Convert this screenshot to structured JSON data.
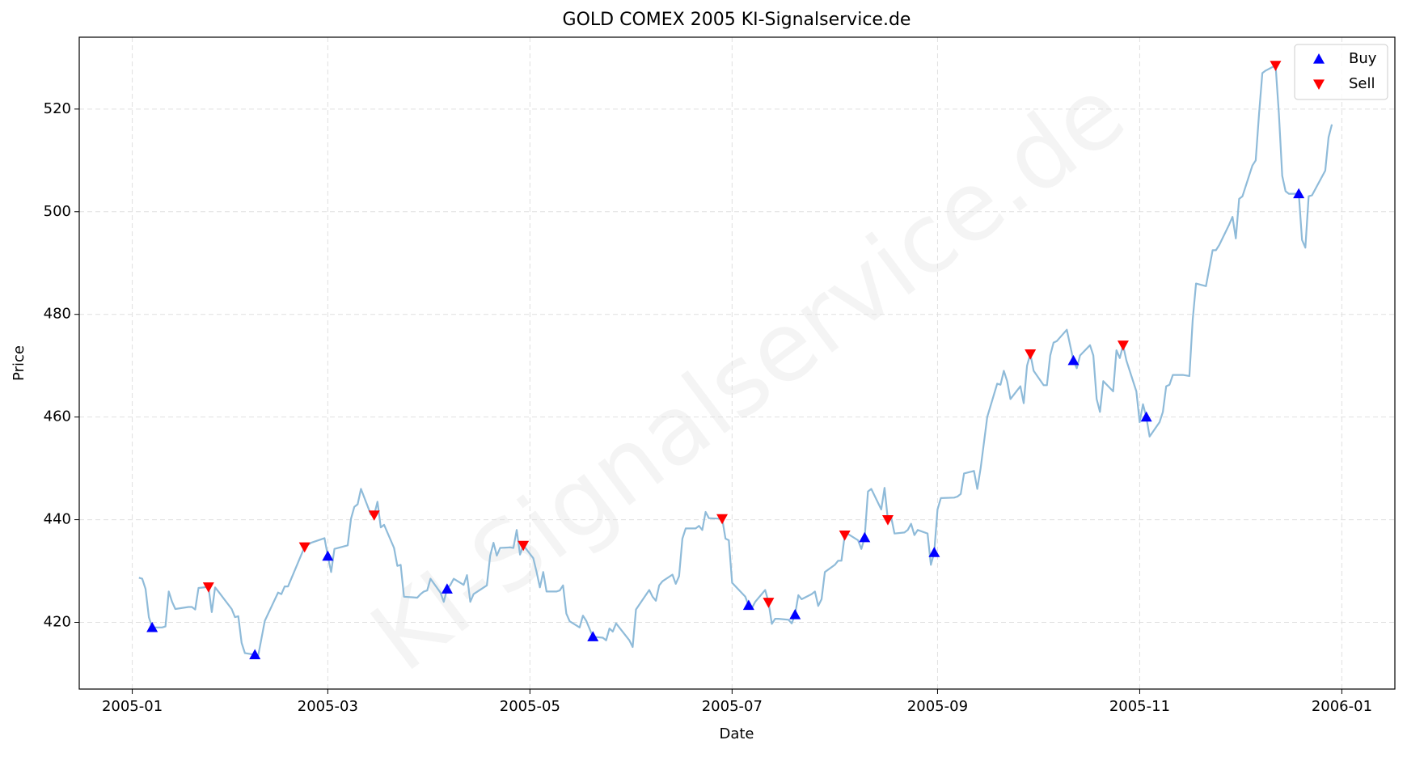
{
  "chart_data": {
    "type": "line",
    "title": "GOLD COMEX 2005 KI-Signalservice.de",
    "watermark": "KI-Signalservice.de",
    "x_label": "Date",
    "y_label": "Price",
    "color": "#8fbbd9",
    "x": [
      "2005-01-03",
      "2005-01-04",
      "2005-01-05",
      "2005-01-06",
      "2005-01-07",
      "2005-01-10",
      "2005-01-11",
      "2005-01-12",
      "2005-01-13",
      "2005-01-14",
      "2005-01-18",
      "2005-01-19",
      "2005-01-20",
      "2005-01-21",
      "2005-01-24",
      "2005-01-25",
      "2005-01-26",
      "2005-01-27",
      "2005-01-31",
      "2005-02-01",
      "2005-02-02",
      "2005-02-03",
      "2005-02-04",
      "2005-02-07",
      "2005-02-08",
      "2005-02-10",
      "2005-02-14",
      "2005-02-15",
      "2005-02-16",
      "2005-02-17",
      "2005-02-22",
      "2005-02-24",
      "2005-02-28",
      "2005-03-01",
      "2005-03-02",
      "2005-03-03",
      "2005-03-07",
      "2005-03-08",
      "2005-03-09",
      "2005-03-10",
      "2005-03-11",
      "2005-03-14",
      "2005-03-15",
      "2005-03-16",
      "2005-03-17",
      "2005-03-18",
      "2005-03-21",
      "2005-03-22",
      "2005-03-23",
      "2005-03-24",
      "2005-03-28",
      "2005-03-29",
      "2005-03-30",
      "2005-03-31",
      "2005-04-01",
      "2005-04-04",
      "2005-04-05",
      "2005-04-06",
      "2005-04-07",
      "2005-04-08",
      "2005-04-11",
      "2005-04-12",
      "2005-04-13",
      "2005-04-14",
      "2005-04-18",
      "2005-04-19",
      "2005-04-20",
      "2005-04-21",
      "2005-04-22",
      "2005-04-25",
      "2005-04-26",
      "2005-04-27",
      "2005-04-28",
      "2005-04-29",
      "2005-05-02",
      "2005-05-03",
      "2005-05-04",
      "2005-05-05",
      "2005-05-06",
      "2005-05-09",
      "2005-05-10",
      "2005-05-11",
      "2005-05-12",
      "2005-05-13",
      "2005-05-16",
      "2005-05-17",
      "2005-05-18",
      "2005-05-20",
      "2005-05-23",
      "2005-05-24",
      "2005-05-25",
      "2005-05-26",
      "2005-05-27",
      "2005-05-31",
      "2005-06-01",
      "2005-06-02",
      "2005-06-06",
      "2005-06-07",
      "2005-06-08",
      "2005-06-09",
      "2005-06-10",
      "2005-06-13",
      "2005-06-14",
      "2005-06-15",
      "2005-06-16",
      "2005-06-17",
      "2005-06-20",
      "2005-06-21",
      "2005-06-22",
      "2005-06-23",
      "2005-06-24",
      "2005-06-27",
      "2005-06-28",
      "2005-06-29",
      "2005-06-30",
      "2005-07-01",
      "2005-07-05",
      "2005-07-06",
      "2005-07-07",
      "2005-07-08",
      "2005-07-11",
      "2005-07-12",
      "2005-07-13",
      "2005-07-14",
      "2005-07-15",
      "2005-07-18",
      "2005-07-19",
      "2005-07-20",
      "2005-07-21",
      "2005-07-22",
      "2005-07-25",
      "2005-07-26",
      "2005-07-27",
      "2005-07-28",
      "2005-07-29",
      "2005-08-01",
      "2005-08-02",
      "2005-08-03",
      "2005-08-04",
      "2005-08-05",
      "2005-08-08",
      "2005-08-09",
      "2005-08-10",
      "2005-08-11",
      "2005-08-12",
      "2005-08-15",
      "2005-08-16",
      "2005-08-17",
      "2005-08-18",
      "2005-08-19",
      "2005-08-22",
      "2005-08-23",
      "2005-08-24",
      "2005-08-25",
      "2005-08-26",
      "2005-08-29",
      "2005-08-30",
      "2005-08-31",
      "2005-09-01",
      "2005-09-02",
      "2005-09-06",
      "2005-09-07",
      "2005-09-08",
      "2005-09-09",
      "2005-09-12",
      "2005-09-13",
      "2005-09-14",
      "2005-09-15",
      "2005-09-16",
      "2005-09-19",
      "2005-09-20",
      "2005-09-21",
      "2005-09-22",
      "2005-09-23",
      "2005-09-26",
      "2005-09-27",
      "2005-09-28",
      "2005-09-29",
      "2005-09-30",
      "2005-10-03",
      "2005-10-04",
      "2005-10-05",
      "2005-10-06",
      "2005-10-07",
      "2005-10-10",
      "2005-10-11",
      "2005-10-12",
      "2005-10-13",
      "2005-10-14",
      "2005-10-17",
      "2005-10-18",
      "2005-10-19",
      "2005-10-20",
      "2005-10-21",
      "2005-10-24",
      "2005-10-25",
      "2005-10-26",
      "2005-10-27",
      "2005-10-28",
      "2005-10-31",
      "2005-11-01",
      "2005-11-02",
      "2005-11-03",
      "2005-11-04",
      "2005-11-07",
      "2005-11-08",
      "2005-11-09",
      "2005-11-10",
      "2005-11-11",
      "2005-11-14",
      "2005-11-16",
      "2005-11-17",
      "2005-11-18",
      "2005-11-21",
      "2005-11-22",
      "2005-11-23",
      "2005-11-24",
      "2005-11-25",
      "2005-11-28",
      "2005-11-29",
      "2005-11-30",
      "2005-12-01",
      "2005-12-02",
      "2005-12-05",
      "2005-12-06",
      "2005-12-07",
      "2005-12-08",
      "2005-12-09",
      "2005-12-12",
      "2005-12-13",
      "2005-12-14",
      "2005-12-15",
      "2005-12-16",
      "2005-12-19",
      "2005-12-20",
      "2005-12-21",
      "2005-12-22",
      "2005-12-23",
      "2005-12-27",
      "2005-12-28",
      "2005-12-29"
    ],
    "values": [
      428.7,
      428.5,
      426.5,
      421.0,
      419.0,
      419.0,
      419.2,
      426.0,
      424.0,
      422.6,
      423.0,
      423.0,
      422.5,
      426.7,
      426.9,
      422.0,
      426.8,
      426.0,
      422.6,
      421.0,
      421.2,
      416.0,
      414.0,
      413.7,
      413.5,
      420.3,
      425.8,
      425.5,
      427.0,
      427.0,
      434.7,
      435.5,
      436.4,
      432.9,
      429.8,
      434.3,
      435.0,
      440.2,
      442.5,
      443.0,
      446.0,
      441.0,
      440.9,
      443.5,
      438.5,
      439.0,
      434.5,
      431.0,
      431.2,
      425.0,
      424.8,
      425.5,
      426.0,
      426.2,
      428.5,
      425.8,
      424.0,
      426.5,
      427.3,
      428.5,
      427.3,
      429.2,
      424.0,
      425.5,
      427.2,
      433.0,
      435.5,
      433.0,
      434.5,
      434.6,
      434.5,
      438.0,
      433.2,
      435.0,
      432.5,
      429.8,
      426.8,
      429.8,
      426.0,
      426.0,
      426.2,
      427.2,
      421.7,
      420.2,
      419.0,
      421.3,
      420.3,
      417.2,
      417.0,
      416.5,
      418.8,
      418.2,
      419.8,
      416.5,
      415.2,
      422.5,
      426.3,
      425.0,
      424.2,
      427.2,
      428.0,
      429.3,
      427.5,
      429.0,
      436.3,
      438.3,
      438.3,
      438.8,
      438.0,
      441.5,
      440.3,
      440.2,
      440.2,
      436.3,
      436.0,
      427.7,
      425.0,
      423.3,
      422.8,
      424.0,
      426.3,
      423.9,
      419.7,
      420.7,
      420.7,
      420.5,
      419.8,
      421.5,
      425.3,
      424.5,
      425.5,
      426.0,
      423.2,
      424.5,
      429.8,
      431.2,
      432.0,
      432.0,
      437.0,
      437.2,
      436.0,
      434.3,
      436.5,
      445.5,
      446.0,
      442.0,
      446.2,
      440.0,
      440.5,
      437.3,
      437.5,
      438.0,
      439.2,
      437.0,
      438.0,
      437.3,
      431.2,
      433.6,
      442.0,
      444.2,
      444.3,
      444.5,
      445.0,
      449.0,
      449.5,
      446.0,
      450.0,
      455.0,
      460.0,
      466.5,
      466.3,
      469.0,
      467.0,
      463.5,
      466.0,
      462.7,
      470.0,
      472.3,
      469.0,
      466.2,
      466.2,
      472.0,
      474.5,
      474.8,
      477.0,
      474.0,
      471.0,
      469.5,
      472.0,
      474.0,
      472.0,
      463.5,
      461.0,
      467.0,
      465.0,
      473.0,
      471.5,
      474.0,
      471.0,
      465.0,
      459.0,
      462.5,
      460.0,
      456.2,
      459.0,
      461.0,
      466.0,
      466.3,
      468.2,
      468.2,
      468.0,
      479.0,
      486.0,
      485.5,
      489.0,
      492.5,
      492.5,
      493.5,
      497.5,
      499.0,
      494.8,
      502.5,
      503.0,
      509.0,
      510.0,
      519.0,
      527.0,
      527.5,
      528.5,
      519.0,
      507.0,
      504.0,
      503.5,
      503.5,
      494.5,
      493.0,
      503.0,
      503.2,
      508.0,
      514.5,
      517.0
    ],
    "signals": [
      {
        "name": "Buy",
        "marker": "triangle-up",
        "color": "#0000ff",
        "x": [
          "2005-01-07",
          "2005-02-07",
          "2005-03-01",
          "2005-04-06",
          "2005-05-20",
          "2005-07-06",
          "2005-07-20",
          "2005-08-10",
          "2005-08-31",
          "2005-10-12",
          "2005-11-03",
          "2005-12-19"
        ],
        "values": [
          419.0,
          413.7,
          432.9,
          426.5,
          417.2,
          423.3,
          421.5,
          436.5,
          433.6,
          471.0,
          460.0,
          503.5
        ]
      },
      {
        "name": "Sell",
        "marker": "triangle-down",
        "color": "#ff0000",
        "x": [
          "2005-01-24",
          "2005-02-22",
          "2005-03-15",
          "2005-04-29",
          "2005-06-28",
          "2005-07-12",
          "2005-08-04",
          "2005-08-17",
          "2005-09-29",
          "2005-10-27",
          "2005-12-12"
        ],
        "values": [
          426.9,
          434.7,
          440.9,
          435.0,
          440.2,
          423.9,
          437.0,
          440.0,
          472.3,
          474.0,
          528.5
        ]
      }
    ],
    "xlim": [
      "2004-12-16",
      "2006-01-17"
    ],
    "xticks": [
      {
        "value": "2005-01-01",
        "label": "2005-01"
      },
      {
        "value": "2005-03-01",
        "label": "2005-03"
      },
      {
        "value": "2005-05-01",
        "label": "2005-05"
      },
      {
        "value": "2005-07-01",
        "label": "2005-07"
      },
      {
        "value": "2005-09-01",
        "label": "2005-09"
      },
      {
        "value": "2005-11-01",
        "label": "2005-11"
      },
      {
        "value": "2006-01-01",
        "label": "2006-01"
      }
    ],
    "ylim": [
      407,
      534
    ],
    "yticks": [
      420,
      440,
      460,
      480,
      500,
      520
    ],
    "grid": true,
    "legend": "upper-right"
  }
}
